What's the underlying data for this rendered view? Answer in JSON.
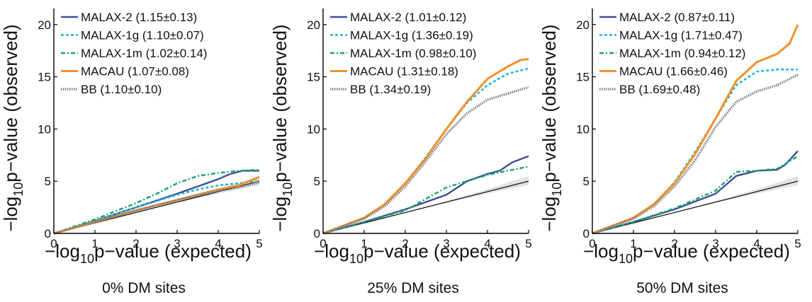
{
  "colors": {
    "MALAX-2": "#3d4f9a",
    "MALAX-1g": "#1fb8d6",
    "MALAX-1m": "#14a56a",
    "MACAU": "#f3902a",
    "BB": "#777777",
    "null": "#000000",
    "band": "#e2e2e2"
  },
  "chart_data": [
    {
      "type": "line",
      "caption": "0% DM sites",
      "ylabel": {
        "pre": "−log",
        "sub": "10",
        "post": "p−value (observed)"
      },
      "xlabel": {
        "pre": "−log",
        "sub": "10",
        "post": "p−value (expected)"
      },
      "xlim": [
        0,
        5
      ],
      "ylim": [
        0,
        21
      ],
      "xticks": [
        "0",
        "1",
        "2",
        "3",
        "4",
        "5"
      ],
      "yticks": [
        "0",
        "5",
        "10",
        "15",
        "20"
      ],
      "legend": [
        "MALAX-2 (1.15±0.13)",
        "MALAX-1g (1.10±0.07)",
        "MALAX-1m (1.02±0.14)",
        "MACAU (1.07±0.08)",
        "BB (1.10±0.10)"
      ],
      "series": [
        {
          "name": "MALAX-2",
          "x": [
            0,
            1,
            2,
            3,
            3.5,
            4,
            4.3,
            4.6,
            5
          ],
          "y": [
            0,
            1.2,
            2.5,
            3.8,
            4.5,
            5.2,
            5.7,
            6.0,
            6.0
          ]
        },
        {
          "name": "MALAX-1g",
          "x": [
            0,
            1,
            2,
            3,
            3.5,
            4,
            4.5,
            5
          ],
          "y": [
            0,
            1.2,
            2.5,
            3.7,
            4.2,
            4.6,
            4.8,
            5.0
          ]
        },
        {
          "name": "MALAX-1m",
          "x": [
            0,
            1,
            2,
            2.5,
            3,
            3.5,
            4,
            4.5,
            5
          ],
          "y": [
            0,
            1.35,
            2.9,
            3.8,
            4.8,
            5.5,
            5.8,
            6.0,
            6.1
          ]
        },
        {
          "name": "MACAU",
          "x": [
            0,
            1,
            2,
            3,
            4,
            4.5,
            5
          ],
          "y": [
            0,
            1.1,
            2.2,
            3.2,
            4.2,
            4.6,
            5.4
          ]
        },
        {
          "name": "BB",
          "x": [
            0,
            1,
            2,
            3,
            4,
            4.5,
            5
          ],
          "y": [
            0,
            1.1,
            2.2,
            3.2,
            4.1,
            4.4,
            4.9
          ]
        }
      ]
    },
    {
      "type": "line",
      "caption": "25% DM sites",
      "ylabel": {
        "pre": "−log",
        "sub": "10",
        "post": "p−value (observed)"
      },
      "xlabel": {
        "pre": "−log",
        "sub": "10",
        "post": "p−value (expected)"
      },
      "xlim": [
        0,
        5
      ],
      "ylim": [
        0,
        21
      ],
      "xticks": [
        "0",
        "1",
        "2",
        "3",
        "4",
        "5"
      ],
      "yticks": [
        "0",
        "5",
        "10",
        "15",
        "20"
      ],
      "legend": [
        "MALAX-2 (1.01±0.12)",
        "MALAX-1g (1.36±0.19)",
        "MALAX-1m (0.98±0.10)",
        "MACAU (1.31±0.18)",
        "BB (1.34±0.19)"
      ],
      "series": [
        {
          "name": "MALAX-2",
          "x": [
            0,
            1,
            2,
            3,
            3.5,
            4,
            4.3,
            4.6,
            5
          ],
          "y": [
            0,
            1.1,
            2.3,
            3.7,
            5.0,
            5.7,
            6.0,
            6.8,
            7.4
          ]
        },
        {
          "name": "MALAX-1g",
          "x": [
            0,
            1,
            1.5,
            2,
            2.5,
            3,
            3.5,
            4,
            4.5,
            5
          ],
          "y": [
            0,
            1.5,
            2.8,
            4.8,
            7.3,
            10.0,
            12.5,
            14.2,
            15.3,
            15.8
          ]
        },
        {
          "name": "MALAX-1m",
          "x": [
            0,
            1,
            2,
            3,
            4,
            5
          ],
          "y": [
            0,
            1.1,
            2.2,
            4.4,
            5.6,
            6.4
          ]
        },
        {
          "name": "MACAU",
          "x": [
            0,
            1,
            1.5,
            2,
            2.5,
            3,
            3.5,
            4,
            4.5,
            4.8,
            5
          ],
          "y": [
            0,
            1.5,
            2.8,
            4.8,
            7.2,
            10.0,
            12.6,
            14.8,
            16.0,
            16.6,
            16.7
          ]
        },
        {
          "name": "BB",
          "x": [
            0,
            1,
            1.5,
            2,
            2.5,
            3,
            3.5,
            4,
            4.5,
            5
          ],
          "y": [
            0,
            1.4,
            2.6,
            4.5,
            6.9,
            9.5,
            11.5,
            12.8,
            13.4,
            14.0
          ]
        }
      ]
    },
    {
      "type": "line",
      "caption": "50% DM sites",
      "ylabel": {
        "pre": "−log",
        "sub": "10",
        "post": "p−value (observed)"
      },
      "xlabel": {
        "pre": "−log",
        "sub": "10",
        "post": "p−value (expected)"
      },
      "xlim": [
        0,
        5
      ],
      "ylim": [
        0,
        21
      ],
      "xticks": [
        "0",
        "1",
        "2",
        "3",
        "4",
        "5"
      ],
      "yticks": [
        "0",
        "5",
        "10",
        "15",
        "20"
      ],
      "legend": [
        "MALAX-2 (0.87±0.11)",
        "MALAX-1g (1.71±0.47)",
        "MALAX-1m (0.94±0.12)",
        "MACAU (1.66±0.46)",
        "BB (1.69±0.48)"
      ],
      "series": [
        {
          "name": "MALAX-2",
          "x": [
            0,
            1,
            2,
            3,
            3.5,
            4,
            4.5,
            4.7,
            5
          ],
          "y": [
            0,
            1.1,
            2.3,
            3.8,
            5.5,
            6.0,
            6.1,
            6.6,
            7.9
          ]
        },
        {
          "name": "MALAX-1g",
          "x": [
            0,
            1,
            1.5,
            2,
            2.5,
            3,
            3.5,
            4,
            4.5,
            5
          ],
          "y": [
            0,
            1.5,
            2.8,
            4.9,
            7.8,
            11.0,
            14.2,
            15.5,
            15.7,
            15.7
          ]
        },
        {
          "name": "MALAX-1m",
          "x": [
            0,
            1,
            2,
            3,
            3.5,
            4,
            4.5,
            5
          ],
          "y": [
            0,
            1.1,
            2.4,
            4.1,
            5.9,
            6.0,
            6.2,
            7.4
          ]
        },
        {
          "name": "MACAU",
          "x": [
            0,
            1,
            1.5,
            2,
            2.5,
            3,
            3.5,
            4,
            4.5,
            4.8,
            5
          ],
          "y": [
            0,
            1.5,
            2.8,
            4.8,
            7.6,
            11.0,
            14.6,
            16.4,
            17.2,
            18.2,
            20.0
          ]
        },
        {
          "name": "BB",
          "x": [
            0,
            1,
            1.5,
            2,
            2.5,
            3,
            3.5,
            4,
            4.5,
            5
          ],
          "y": [
            0,
            1.4,
            2.6,
            4.5,
            7.0,
            10.2,
            12.6,
            13.6,
            14.2,
            15.2
          ]
        }
      ]
    }
  ]
}
